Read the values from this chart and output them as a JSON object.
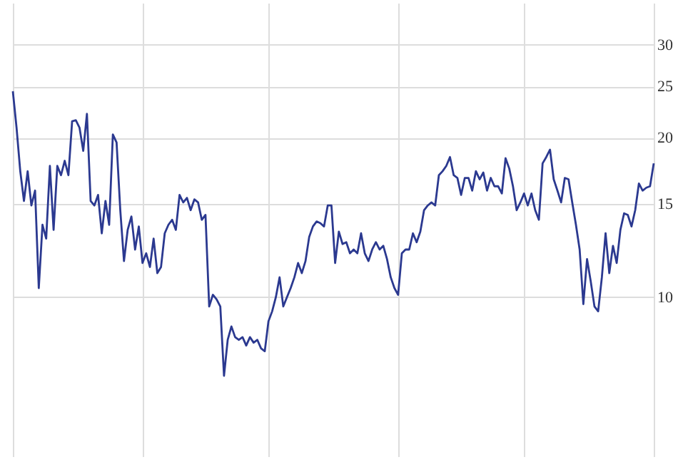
{
  "chart_data": {
    "type": "line",
    "log": "y",
    "grid": true,
    "ylim": [
      5,
      36
    ],
    "yticks": [
      10,
      15,
      20,
      25,
      30
    ],
    "color": "#2b3990",
    "line_style": "solid",
    "marker": "none",
    "values": [
      24.5,
      20.9,
      17.3,
      15.2,
      17.3,
      14.9,
      15.9,
      10.4,
      13.7,
      12.9,
      17.7,
      13.4,
      17.7,
      17.0,
      18.1,
      17.0,
      21.5,
      21.6,
      20.9,
      18.9,
      22.2,
      15.2,
      14.9,
      15.6,
      13.2,
      15.2,
      13.7,
      20.3,
      19.6,
      14.6,
      11.7,
      13.4,
      14.2,
      12.3,
      13.6,
      11.6,
      12.1,
      11.4,
      12.9,
      11.1,
      11.4,
      13.2,
      13.7,
      14.0,
      13.4,
      15.6,
      15.1,
      15.4,
      14.6,
      15.3,
      15.1,
      14.0,
      14.3,
      9.6,
      10.1,
      9.9,
      9.6,
      7.1,
      8.3,
      8.8,
      8.4,
      8.3,
      8.4,
      8.1,
      8.4,
      8.2,
      8.3,
      8.0,
      7.9,
      9.0,
      9.4,
      10.0,
      10.9,
      9.6,
      10.0,
      10.4,
      10.9,
      11.6,
      11.1,
      11.7,
      13.0,
      13.6,
      13.9,
      13.8,
      13.6,
      14.9,
      14.9,
      11.6,
      13.3,
      12.6,
      12.7,
      12.1,
      12.3,
      12.1,
      13.2,
      12.1,
      11.7,
      12.3,
      12.7,
      12.3,
      12.5,
      11.8,
      10.9,
      10.4,
      10.1,
      12.1,
      12.3,
      12.3,
      13.2,
      12.7,
      13.3,
      14.6,
      14.9,
      15.1,
      14.9,
      17.0,
      17.3,
      17.7,
      18.4,
      17.0,
      16.8,
      15.6,
      16.8,
      16.8,
      15.9,
      17.3,
      16.7,
      17.2,
      15.9,
      16.8,
      16.2,
      16.2,
      15.7,
      18.3,
      17.5,
      16.2,
      14.6,
      15.1,
      15.7,
      14.9,
      15.7,
      14.6,
      14.0,
      17.9,
      18.4,
      19.0,
      16.7,
      15.9,
      15.1,
      16.8,
      16.7,
      15.1,
      13.7,
      12.3,
      9.7,
      11.8,
      10.7,
      9.6,
      9.4,
      10.9,
      13.2,
      11.1,
      12.5,
      11.6,
      13.4,
      14.4,
      14.3,
      13.6,
      14.6,
      16.4,
      15.9,
      16.1,
      16.2,
      17.9
    ]
  }
}
